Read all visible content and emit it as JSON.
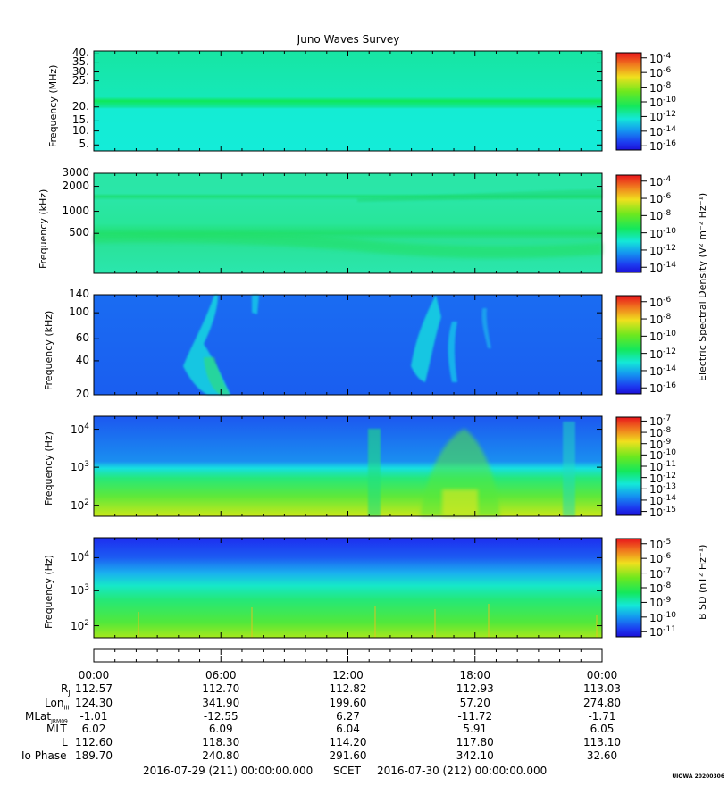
{
  "title": "Juno Waves Survey",
  "stamp": "UIOWA 20200306",
  "colors": {
    "bg": "#ffffff",
    "axis": "#000000"
  },
  "chart_data": [
    {
      "type": "heatmap",
      "panel": "HFR high",
      "ylabel": "Frequency (MHz)",
      "yticks": [
        "40.",
        "35.",
        "30.",
        "25.",
        "20.",
        "15.",
        "10.",
        "5."
      ],
      "yrange": [
        3,
        41
      ],
      "colorbar_ticks": [
        "-4",
        "-6",
        "-8",
        "-10",
        "-12",
        "-14",
        "-16"
      ],
      "colorbar_base": "10",
      "features": "uniform cyan background (~1e-13) with a bright green band at ~21 MHz"
    },
    {
      "type": "heatmap",
      "panel": "HFR low",
      "ylabel": "Frequency (kHz)",
      "yticks": [
        "3000",
        "2000",
        "1000",
        "500"
      ],
      "scale": "log",
      "colorbar_ticks": [
        "-4",
        "-6",
        "-8",
        "-10",
        "-12",
        "-14"
      ],
      "colorbar_base": "10",
      "colorbar_label": "Electric Spectral Density (V² m⁻² Hz⁻¹)",
      "features": "green band near 1500 kHz, broad green emission near 400 kHz drifting lower after 12:00"
    },
    {
      "type": "heatmap",
      "panel": "LFR high",
      "ylabel": "Frequency (kHz)",
      "yticks": [
        "140",
        "100",
        "60",
        "40",
        "20"
      ],
      "colorbar_ticks": [
        "-6",
        "-8",
        "-10",
        "-12",
        "-14",
        "-16"
      ],
      "colorbar_base": "10",
      "features": "blue background with cyan/green arc emissions near 04:00-07:30 and 15:00-18:30"
    },
    {
      "type": "heatmap",
      "panel": "LFR low",
      "ylabel": "Frequency (Hz)",
      "yticks": [
        "10^4",
        "10^3",
        "10^2"
      ],
      "scale": "log",
      "colorbar_ticks": [
        "-7",
        "-8",
        "-9",
        "-10",
        "-11",
        "-12",
        "-13",
        "-14",
        "-15"
      ],
      "colorbar_base": "10",
      "features": "blue above ~1 kHz, green/yellow below with enhancements at ~13:00 and ~18:00"
    },
    {
      "type": "heatmap",
      "panel": "Magnetic",
      "ylabel": "Frequency (Hz)",
      "yticks": [
        "10^4",
        "10^3",
        "10^2"
      ],
      "scale": "log",
      "colorbar_ticks": [
        "-5",
        "-6",
        "-7",
        "-8",
        "-9",
        "-10",
        "-11"
      ],
      "colorbar_base": "10",
      "colorbar_label": "B SD (nT² Hz⁻¹)",
      "features": "dark blue top band, cyan/green middle, yellow-green bottom near 100 Hz"
    }
  ],
  "xaxis": {
    "ticks": [
      "00:00",
      "06:00",
      "12:00",
      "18:00",
      "00:00"
    ]
  },
  "ephemeris": [
    {
      "name": "RJ",
      "values": [
        "112.57",
        "112.70",
        "112.82",
        "112.93",
        "113.03"
      ]
    },
    {
      "name": "LonIII",
      "values": [
        "124.30",
        "341.90",
        "199.60",
        "57.20",
        "274.80"
      ]
    },
    {
      "name": "MLatJRM09",
      "values": [
        "-1.01",
        "-12.55",
        "6.27",
        "-11.72",
        "-1.71"
      ]
    },
    {
      "name": "MLT",
      "values": [
        "6.02",
        "6.09",
        "6.04",
        "5.91",
        "6.05"
      ]
    },
    {
      "name": "L",
      "values": [
        "112.60",
        "118.30",
        "114.20",
        "117.80",
        "113.10"
      ]
    },
    {
      "name": "Io Phase",
      "values": [
        "189.70",
        "240.80",
        "291.60",
        "342.10",
        "32.60"
      ]
    }
  ],
  "ephem_labels": {
    "rj_main": "R",
    "rj_sub": "J",
    "lon_main": "Lon",
    "lon_sub": "III",
    "mlat_main": "MLat",
    "mlat_sub": "JRM09",
    "mlt": "MLT",
    "l": "L",
    "io": "Io Phase"
  },
  "scet": {
    "start": "2016-07-29 (211) 00:00:00.000",
    "label": "SCET",
    "end": "2016-07-30 (212) 00:00:00.000"
  }
}
